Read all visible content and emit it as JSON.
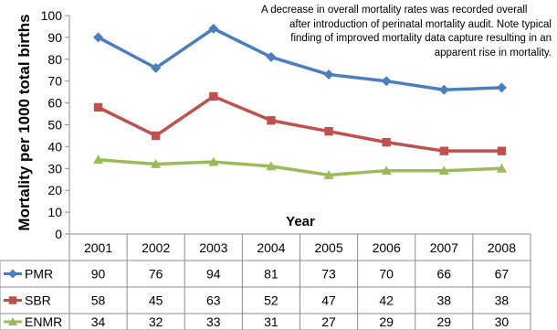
{
  "chart_data": {
    "type": "line",
    "title": "",
    "annotation": [
      "A decrease in overall mortality rates was recorded overall",
      "after introduction of perinatal mortality audit. Note typical",
      "finding of improved mortality data capture resulting in an",
      "apparent rise in mortality."
    ],
    "xlabel": "Year",
    "ylabel": "Mortality per 1000 total births",
    "ylim": [
      0,
      100
    ],
    "yticks": [
      "0",
      "10",
      "20",
      "30",
      "40",
      "50",
      "60",
      "70",
      "80",
      "90",
      "100"
    ],
    "categories": [
      "2001",
      "2002",
      "2003",
      "2004",
      "2005",
      "2006",
      "2007",
      "2008"
    ],
    "grid": false,
    "data_table": true,
    "series": [
      {
        "name": "PMR",
        "values": [
          90,
          76,
          94,
          81,
          73,
          70,
          66,
          67
        ],
        "color": "#4a7ebf",
        "marker": "diamond"
      },
      {
        "name": "SBR",
        "values": [
          58,
          45,
          63,
          52,
          47,
          42,
          38,
          38
        ],
        "color": "#c0504d",
        "marker": "square"
      },
      {
        "name": "ENMR",
        "values": [
          34,
          32,
          33,
          31,
          27,
          29,
          29,
          30
        ],
        "color": "#9bbb59",
        "marker": "triangle"
      }
    ]
  }
}
